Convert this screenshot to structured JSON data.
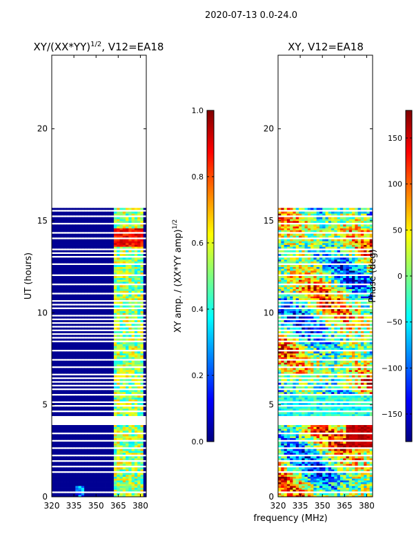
{
  "suptitle": "2020-07-13 0.0-24.0",
  "chart_data": [
    {
      "type": "heatmap",
      "title_main": "XY/(XX*YY)",
      "title_sup": "1/2",
      "title_tail": ", V12=EA18",
      "xlabel": "",
      "ylabel": "UT (hours)",
      "xlim": [
        320,
        384
      ],
      "ylim": [
        0,
        24
      ],
      "xticks": [
        "320",
        "335",
        "350",
        "365",
        "380"
      ],
      "xtick_values": [
        320,
        335,
        350,
        365,
        380
      ],
      "yticks": [
        "0",
        "5",
        "10",
        "15",
        "20"
      ],
      "ytick_values": [
        0,
        5,
        10,
        15,
        20
      ],
      "data_extent_hours": [
        0,
        15.7
      ],
      "colorbar": {
        "label_main": "XY amp. / (XX*YY amp)",
        "label_sup": "1/2",
        "range": [
          0.0,
          1.0
        ],
        "ticks": [
          "0.0",
          "0.2",
          "0.4",
          "0.6",
          "0.8",
          "1.0"
        ],
        "tick_values": [
          0.0,
          0.2,
          0.4,
          0.6,
          0.8,
          1.0
        ]
      }
    },
    {
      "type": "heatmap",
      "title_main": "XY, V12=EA18",
      "xlabel": "frequency (MHz)",
      "ylabel": "",
      "xlim": [
        320,
        384
      ],
      "ylim": [
        0,
        24
      ],
      "xticks": [
        "320",
        "335",
        "350",
        "365",
        "380"
      ],
      "xtick_values": [
        320,
        335,
        350,
        365,
        380
      ],
      "yticks": [
        "0",
        "5",
        "10",
        "15",
        "20"
      ],
      "ytick_values": [
        0,
        5,
        10,
        15,
        20
      ],
      "data_extent_hours": [
        0,
        15.7
      ],
      "colorbar": {
        "label_main": "Phase (deg)",
        "range": [
          -180,
          180
        ],
        "ticks": [
          "−150",
          "−100",
          "−50",
          "0",
          "50",
          "100",
          "150"
        ],
        "tick_values": [
          -150,
          -100,
          -50,
          0,
          50,
          100,
          150
        ]
      }
    }
  ],
  "colors": {
    "jet": [
      "#00007f",
      "#0000ff",
      "#007fff",
      "#00ffff",
      "#7fff7f",
      "#ffff00",
      "#ff7f00",
      "#ff0000",
      "#7f0000"
    ]
  }
}
